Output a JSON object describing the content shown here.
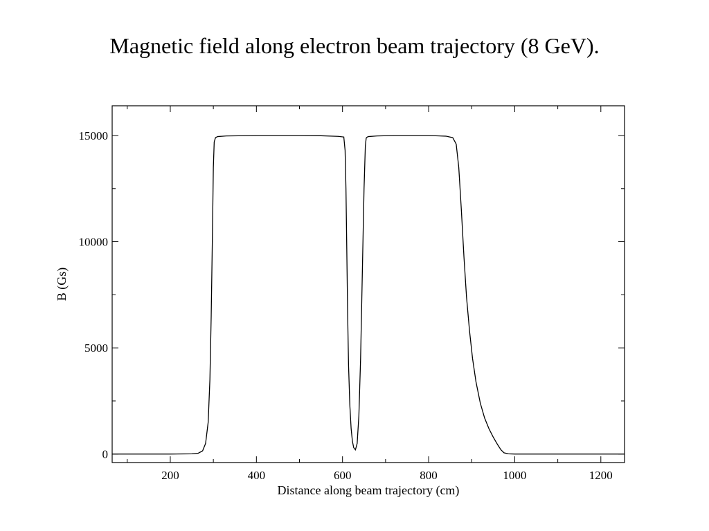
{
  "page": {
    "title": "Magnetic field along electron beam trajectory (8 GeV)."
  },
  "chart_data": {
    "type": "line",
    "title": "Magnetic field along electron beam trajectory (8 GeV).",
    "xlabel": "Distance along beam trajectory (cm)",
    "ylabel": "B (Gs)",
    "xlim": [
      65,
      1255
    ],
    "ylim": [
      -400,
      16400
    ],
    "x_ticks": [
      200,
      400,
      600,
      800,
      1000,
      1200
    ],
    "y_ticks": [
      0,
      5000,
      10000,
      15000
    ],
    "x_minor_ticks": [
      100,
      300,
      500,
      700,
      900,
      1100
    ],
    "y_minor_ticks": [
      2500,
      7500,
      12500
    ],
    "grid": false,
    "legend": "none",
    "line_color": "#000000",
    "series": [
      {
        "x": [
          65,
          200,
          250,
          265,
          275,
          282,
          288,
          292,
          295,
          298,
          300,
          302,
          305,
          310,
          330,
          400,
          450,
          500,
          550,
          590,
          603,
          606,
          608,
          610,
          612,
          614,
          617,
          620,
          623,
          626,
          630,
          634,
          638,
          642,
          646,
          650,
          653,
          655,
          657,
          660,
          680,
          720,
          760,
          800,
          840,
          856,
          864,
          870,
          876,
          882,
          888,
          895,
          902,
          910,
          920,
          930,
          940,
          950,
          960,
          968,
          975,
          985,
          1000,
          1100,
          1255
        ],
        "y": [
          0,
          0,
          10,
          40,
          150,
          500,
          1500,
          3500,
          6500,
          10500,
          13500,
          14700,
          14900,
          14950,
          14980,
          15000,
          15000,
          15000,
          14990,
          14960,
          14930,
          14300,
          12500,
          9500,
          6500,
          4200,
          2300,
          1200,
          600,
          300,
          200,
          500,
          1800,
          4500,
          8500,
          12500,
          14500,
          14880,
          14920,
          14950,
          14980,
          15000,
          15000,
          15000,
          14970,
          14900,
          14600,
          13500,
          11500,
          9300,
          7400,
          5800,
          4500,
          3400,
          2400,
          1700,
          1200,
          800,
          450,
          200,
          60,
          10,
          0,
          0,
          0
        ]
      }
    ]
  }
}
